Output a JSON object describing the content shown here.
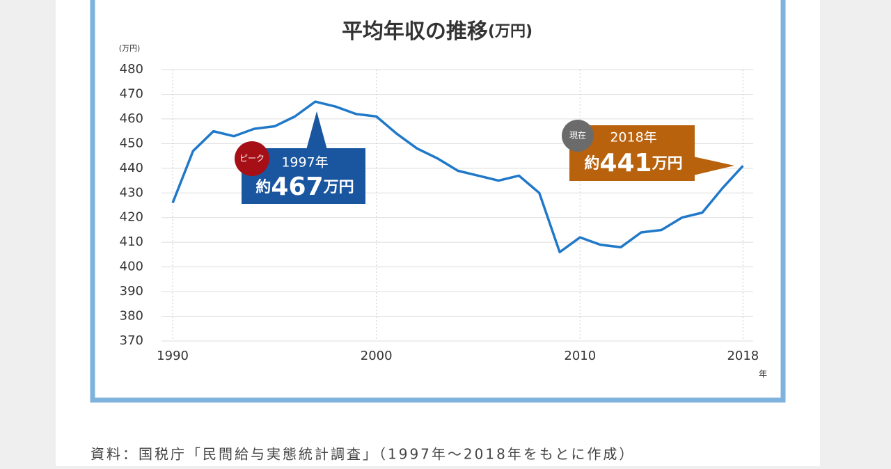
{
  "chart_data": {
    "type": "line",
    "title": "平均年収の推移",
    "title_unit": "(万円)",
    "y_unit": "(万円)",
    "x_unit": "年",
    "x": [
      1990,
      1991,
      1992,
      1993,
      1994,
      1995,
      1996,
      1997,
      1998,
      1999,
      2000,
      2001,
      2002,
      2003,
      2004,
      2005,
      2006,
      2007,
      2008,
      2009,
      2010,
      2011,
      2012,
      2013,
      2014,
      2015,
      2016,
      2017,
      2018
    ],
    "series": [
      {
        "name": "平均年収",
        "color": "#1f78c8",
        "values": [
          426,
          447,
          455,
          453,
          456,
          457,
          461,
          467,
          465,
          462,
          461,
          454,
          448,
          444,
          439,
          437,
          435,
          437,
          430,
          406,
          412,
          409,
          408,
          414,
          415,
          420,
          422,
          432,
          441
        ]
      }
    ],
    "xlim": [
      1989.45,
      2018.5
    ],
    "ylim": [
      370,
      480
    ],
    "xticks": [
      1990,
      2000,
      2010,
      2018
    ],
    "yticks": [
      370,
      380,
      390,
      400,
      410,
      420,
      430,
      440,
      450,
      460,
      470,
      480
    ],
    "grid": true,
    "annotations": [
      {
        "badge": "ピーク",
        "year": "1997年",
        "prefix": "約",
        "value": "467",
        "unit": "万円"
      },
      {
        "badge": "現在",
        "year": "2018年",
        "prefix": "約",
        "value": "441",
        "unit": "万円"
      }
    ],
    "source": "資料：国税庁「民間給与実態統計調査」（1997年～2018年をもとに作成）"
  }
}
